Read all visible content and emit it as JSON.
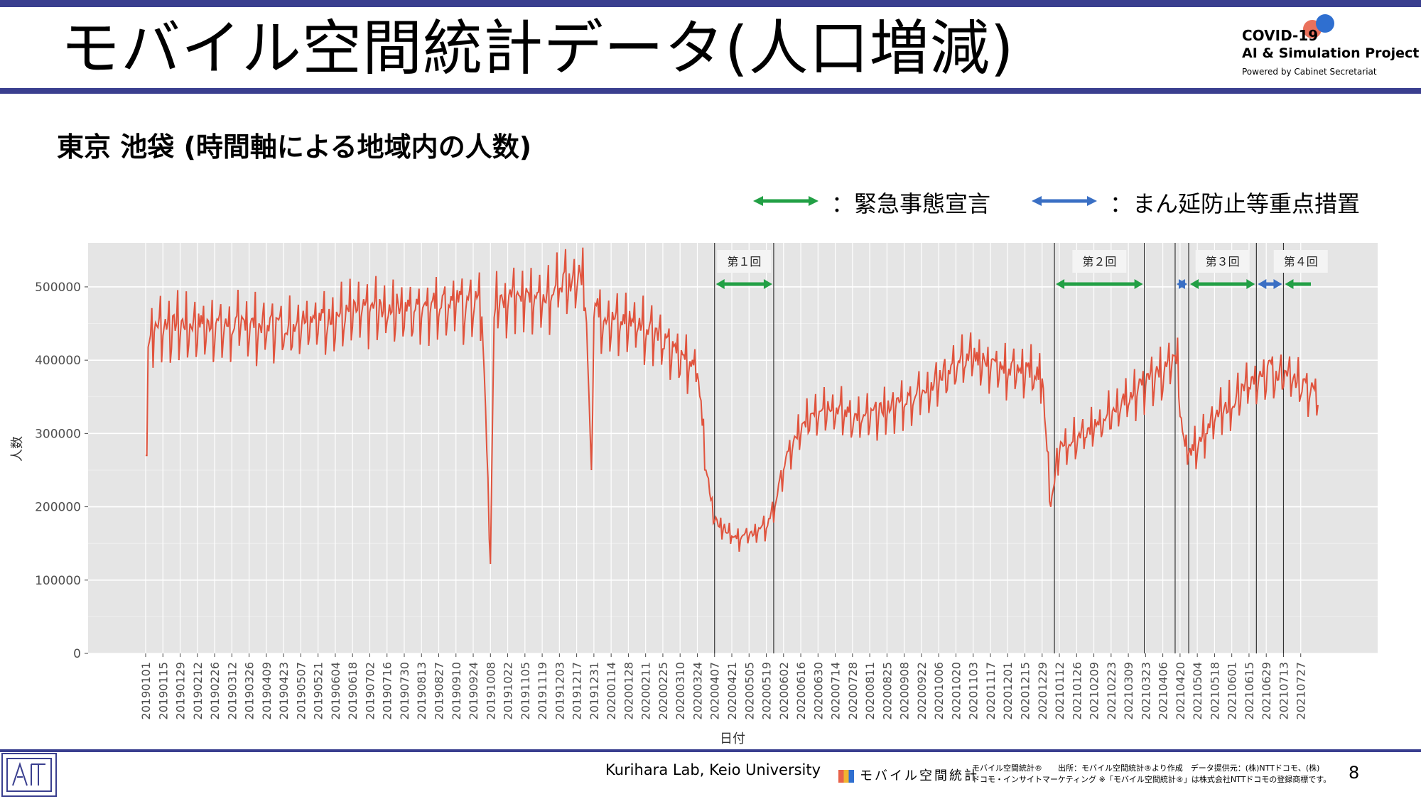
{
  "header": {
    "title": "モバイル空間統計データ(人口増減)",
    "logo_line1": "COVID-19",
    "logo_line2": "AI & Simulation Project",
    "logo_line3": "Powered by Cabinet Secretariat"
  },
  "subtitle": "東京 池袋 (時間軸による地域内の人数)",
  "legend": {
    "emergency_label": "：緊急事態宣言",
    "emergency_color": "#22a045",
    "priority_label": "：まん延防止等重点措置",
    "priority_color": "#3a6fc4"
  },
  "footer": {
    "credit": "Kurihara Lab, Keio University",
    "brand": "モバイル空間統計",
    "note_line1": "モバイル空間統計®　　出所：モバイル空間統計®より作成　データ提供元：(株)NTTドコモ、(株)",
    "note_line2": "ドコモ・インサイトマーケティング ※「モバイル空間統計®」は株式会社NTTドコモの登録商標です。",
    "page_number": "8"
  },
  "chart_data": {
    "type": "line",
    "xlabel": "日付",
    "ylabel": "人数",
    "ylim": [
      0,
      560000
    ],
    "yticks": [
      0,
      100000,
      200000,
      300000,
      400000,
      500000
    ],
    "ytick_labels": [
      "0",
      "100000",
      "200000",
      "300000",
      "400000",
      "500000"
    ],
    "line_color": "#e0533d",
    "background": "#e5e5e5",
    "grid": true,
    "x_tick_labels": [
      "20190101",
      "20190115",
      "20190129",
      "20190212",
      "20190226",
      "20190312",
      "20190326",
      "20190409",
      "20190423",
      "20190507",
      "20190521",
      "20190604",
      "20190618",
      "20190702",
      "20190716",
      "20190730",
      "20190813",
      "20190827",
      "20190910",
      "20190924",
      "20191008",
      "20191022",
      "20191105",
      "20191119",
      "20191203",
      "20191217",
      "20191231",
      "20200114",
      "20200128",
      "20200211",
      "20200225",
      "20200310",
      "20200324",
      "20200407",
      "20200421",
      "20200505",
      "20200519",
      "20200602",
      "20200616",
      "20200630",
      "20200714",
      "20200728",
      "20200811",
      "20200825",
      "20200908",
      "20200922",
      "20201006",
      "20201020",
      "20201103",
      "20201117",
      "20201201",
      "20201215",
      "20201229",
      "20210112",
      "20210126",
      "20210209",
      "20210223",
      "20210309",
      "20210323",
      "20210406",
      "20210420",
      "20210504",
      "20210518",
      "20210601",
      "20210615",
      "20210629",
      "20210713",
      "20210727"
    ],
    "x_range_days": [
      0,
      952
    ],
    "events": [
      {
        "label": "第１回",
        "type": "emergency",
        "start_day": 462,
        "end_day": 510
      },
      {
        "label": "第２回",
        "type": "emergency",
        "start_day": 738,
        "end_day": 811
      },
      {
        "label": "",
        "type": "priority",
        "start_day": 836,
        "end_day": 847
      },
      {
        "label": "第３回",
        "type": "emergency",
        "start_day": 847,
        "end_day": 902
      },
      {
        "label": "",
        "type": "priority",
        "start_day": 902,
        "end_day": 924
      },
      {
        "label": "第４回",
        "type": "emergency",
        "start_day": 924,
        "end_day": 952
      }
    ],
    "series": [
      {
        "values_weekly": [
          [
            0,
            270000
          ],
          [
            2,
            420000
          ],
          [
            7,
            440000
          ],
          [
            14,
            445000
          ],
          [
            21,
            440000
          ],
          [
            28,
            445000
          ],
          [
            35,
            440000
          ],
          [
            42,
            445000
          ],
          [
            49,
            440000
          ],
          [
            56,
            445000
          ],
          [
            63,
            440000
          ],
          [
            70,
            440000
          ],
          [
            77,
            445000
          ],
          [
            84,
            445000
          ],
          [
            91,
            440000
          ],
          [
            98,
            440000
          ],
          [
            105,
            445000
          ],
          [
            112,
            440000
          ],
          [
            119,
            440000
          ],
          [
            126,
            450000
          ],
          [
            133,
            455000
          ],
          [
            140,
            450000
          ],
          [
            147,
            450000
          ],
          [
            154,
            455000
          ],
          [
            161,
            455000
          ],
          [
            168,
            460000
          ],
          [
            175,
            460000
          ],
          [
            182,
            465000
          ],
          [
            189,
            465000
          ],
          [
            196,
            460000
          ],
          [
            203,
            470000
          ],
          [
            210,
            465000
          ],
          [
            217,
            460000
          ],
          [
            224,
            470000
          ],
          [
            231,
            470000
          ],
          [
            238,
            475000
          ],
          [
            245,
            470000
          ],
          [
            252,
            475000
          ],
          [
            259,
            470000
          ],
          [
            266,
            475000
          ],
          [
            273,
            470000
          ],
          [
            280,
            122000
          ],
          [
            283,
            460000
          ],
          [
            287,
            480000
          ],
          [
            294,
            470000
          ],
          [
            301,
            490000
          ],
          [
            308,
            480000
          ],
          [
            315,
            485000
          ],
          [
            322,
            480000
          ],
          [
            329,
            490000
          ],
          [
            336,
            500000
          ],
          [
            343,
            495000
          ],
          [
            350,
            510000
          ],
          [
            357,
            500000
          ],
          [
            362,
            250000
          ],
          [
            364,
            470000
          ],
          [
            371,
            455000
          ],
          [
            378,
            450000
          ],
          [
            385,
            445000
          ],
          [
            392,
            450000
          ],
          [
            399,
            445000
          ],
          [
            406,
            440000
          ],
          [
            413,
            440000
          ],
          [
            420,
            420000
          ],
          [
            427,
            410000
          ],
          [
            434,
            400000
          ],
          [
            441,
            395000
          ],
          [
            448,
            390000
          ],
          [
            455,
            250000
          ],
          [
            462,
            180000
          ],
          [
            469,
            170000
          ],
          [
            476,
            160000
          ],
          [
            483,
            155000
          ],
          [
            490,
            160000
          ],
          [
            497,
            165000
          ],
          [
            504,
            170000
          ],
          [
            511,
            200000
          ],
          [
            518,
            250000
          ],
          [
            525,
            280000
          ],
          [
            532,
            300000
          ],
          [
            539,
            320000
          ],
          [
            546,
            330000
          ],
          [
            553,
            335000
          ],
          [
            560,
            330000
          ],
          [
            567,
            325000
          ],
          [
            574,
            320000
          ],
          [
            581,
            315000
          ],
          [
            588,
            320000
          ],
          [
            595,
            325000
          ],
          [
            602,
            330000
          ],
          [
            609,
            335000
          ],
          [
            616,
            340000
          ],
          [
            623,
            345000
          ],
          [
            630,
            355000
          ],
          [
            637,
            360000
          ],
          [
            644,
            370000
          ],
          [
            651,
            380000
          ],
          [
            658,
            390000
          ],
          [
            665,
            395000
          ],
          [
            672,
            400000
          ],
          [
            679,
            395000
          ],
          [
            686,
            390000
          ],
          [
            693,
            385000
          ],
          [
            700,
            380000
          ],
          [
            707,
            385000
          ],
          [
            714,
            380000
          ],
          [
            721,
            380000
          ],
          [
            728,
            375000
          ],
          [
            735,
            200000
          ],
          [
            742,
            280000
          ],
          [
            749,
            285000
          ],
          [
            756,
            290000
          ],
          [
            763,
            295000
          ],
          [
            770,
            305000
          ],
          [
            777,
            315000
          ],
          [
            784,
            325000
          ],
          [
            791,
            335000
          ],
          [
            798,
            345000
          ],
          [
            805,
            355000
          ],
          [
            812,
            365000
          ],
          [
            819,
            375000
          ],
          [
            826,
            380000
          ],
          [
            833,
            390000
          ],
          [
            838,
            395000
          ],
          [
            842,
            290000
          ],
          [
            849,
            270000
          ],
          [
            856,
            290000
          ],
          [
            863,
            305000
          ],
          [
            870,
            320000
          ],
          [
            877,
            330000
          ],
          [
            884,
            340000
          ],
          [
            891,
            355000
          ],
          [
            898,
            365000
          ],
          [
            905,
            370000
          ],
          [
            912,
            385000
          ],
          [
            919,
            375000
          ],
          [
            926,
            385000
          ],
          [
            933,
            365000
          ],
          [
            940,
            360000
          ],
          [
            947,
            355000
          ],
          [
            952,
            345000
          ]
        ]
      }
    ]
  }
}
